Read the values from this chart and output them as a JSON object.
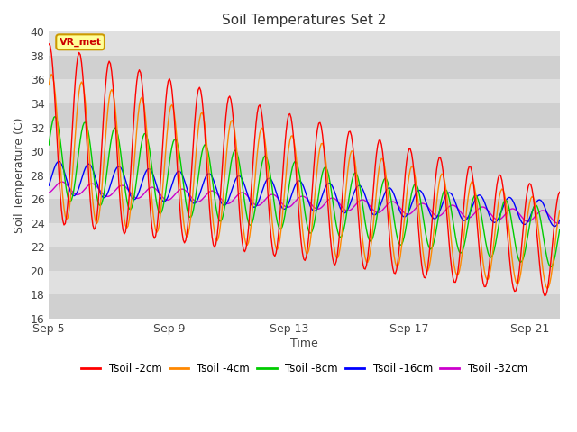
{
  "title": "Soil Temperatures Set 2",
  "xlabel": "Time",
  "ylabel": "Soil Temperature (C)",
  "ylim": [
    16,
    40
  ],
  "yticks": [
    16,
    18,
    20,
    22,
    24,
    26,
    28,
    30,
    32,
    34,
    36,
    38,
    40
  ],
  "xtick_labels": [
    "Sep 5",
    "Sep 9",
    "Sep 13",
    "Sep 17",
    "Sep 21"
  ],
  "xtick_positions": [
    0,
    4,
    8,
    12,
    16
  ],
  "plot_bg_color": "#dddddd",
  "stripe_color": "#cccccc",
  "legend_labels": [
    "Tsoil -2cm",
    "Tsoil -4cm",
    "Tsoil -8cm",
    "Tsoil -16cm",
    "Tsoil -32cm"
  ],
  "line_colors": [
    "#ff0000",
    "#ff8800",
    "#00cc00",
    "#0000ff",
    "#cc00cc"
  ],
  "annotation_text": "VR_met",
  "annotation_bg": "#ffff99",
  "annotation_border": "#cc9900",
  "n_points": 408,
  "total_days": 17
}
